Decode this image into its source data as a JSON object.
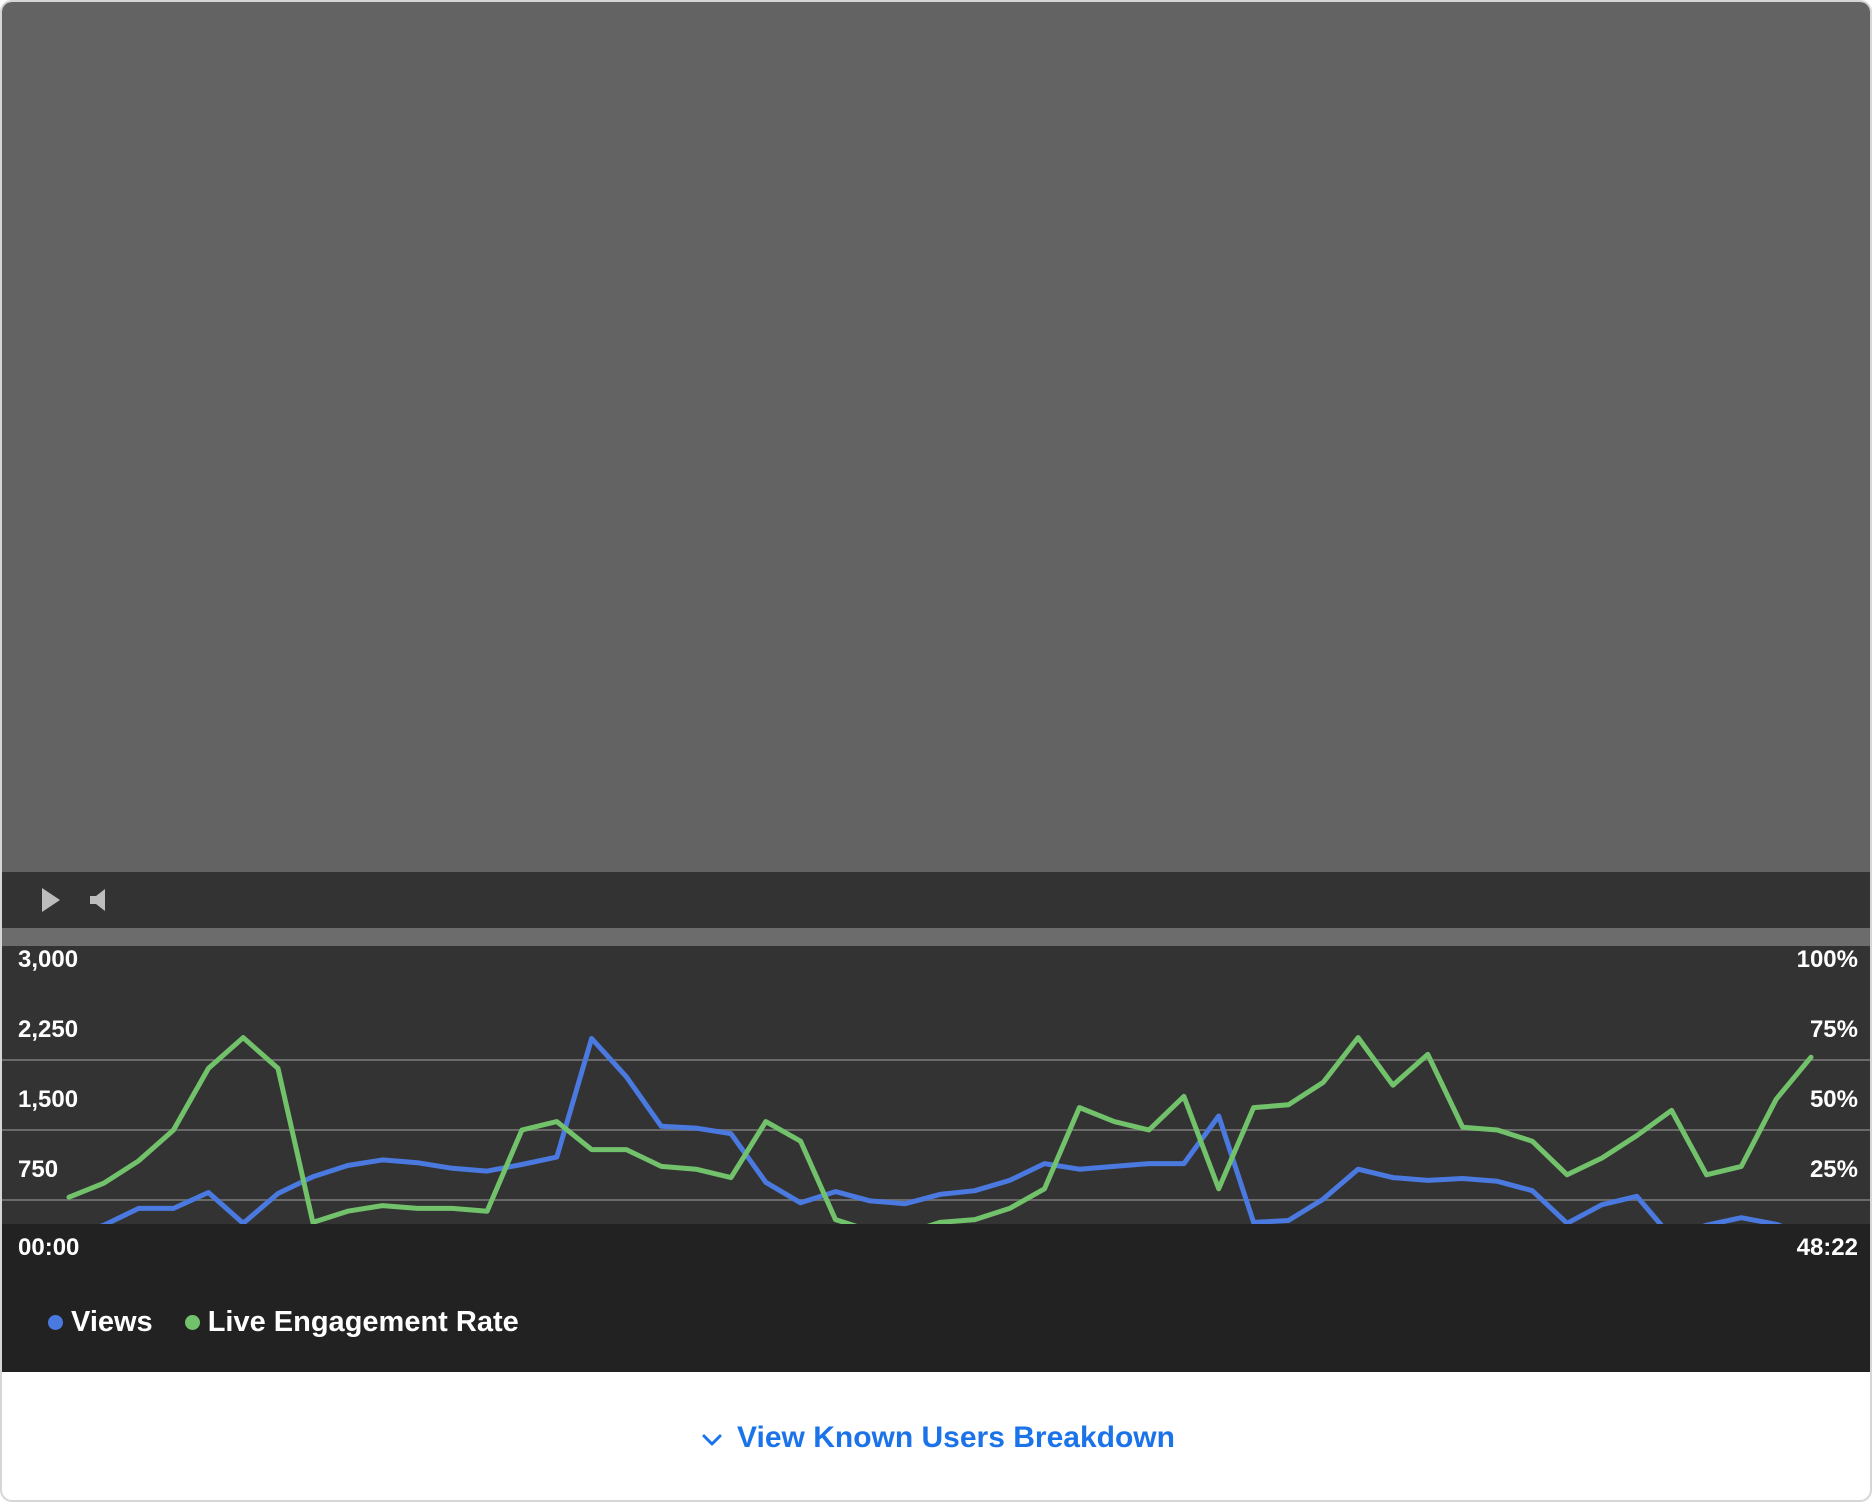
{
  "player": {
    "play_icon": "play-icon",
    "volume_icon": "volume-icon",
    "progress": 0
  },
  "chart_data": {
    "type": "line",
    "x_start_label": "00:00",
    "x_end_label": "48:22",
    "left_axis": {
      "ticks": [
        "750",
        "2,250",
        "1,500",
        "3,000"
      ],
      "tick_values": [
        750,
        1500,
        2250,
        3000
      ],
      "range": [
        0,
        3000
      ]
    },
    "right_axis": {
      "ticks": [
        "25%",
        "50%",
        "75%",
        "100%"
      ],
      "tick_values": [
        25,
        50,
        75,
        100
      ],
      "range": [
        0,
        100
      ]
    },
    "grid": true,
    "legend_position": "bottom-left",
    "series": [
      {
        "name": "Views",
        "color": "#4a79e0",
        "axis": "left",
        "values": [
          350,
          480,
          660,
          660,
          830,
          500,
          820,
          1000,
          1120,
          1180,
          1150,
          1090,
          1060,
          1130,
          1210,
          2480,
          2070,
          1540,
          1520,
          1460,
          940,
          720,
          840,
          740,
          710,
          810,
          850,
          960,
          1140,
          1080,
          1110,
          1140,
          1140,
          1650,
          510,
          530,
          760,
          1080,
          990,
          960,
          980,
          950,
          850,
          500,
          700,
          790,
          350,
          480,
          560,
          490,
          350
        ]
      },
      {
        "name": "Live Engagement Rate",
        "color": "#72c26b",
        "axis": "right",
        "values": [
          26,
          31,
          39,
          50,
          72,
          83,
          72,
          17,
          21,
          23,
          22,
          22,
          21,
          50,
          53,
          43,
          43,
          37,
          36,
          33,
          53,
          46,
          18,
          14,
          13,
          17,
          18,
          22,
          29,
          58,
          53,
          50,
          62,
          29,
          58,
          59,
          67,
          83,
          66,
          77,
          51,
          50,
          46,
          34,
          40,
          48,
          57,
          34,
          37,
          61,
          76
        ]
      }
    ]
  },
  "legend": {
    "views": "Views",
    "engagement": "Live Engagement Rate"
  },
  "breakdown": {
    "label": "View Known Users Breakdown",
    "icon": "chevron-down-icon"
  }
}
